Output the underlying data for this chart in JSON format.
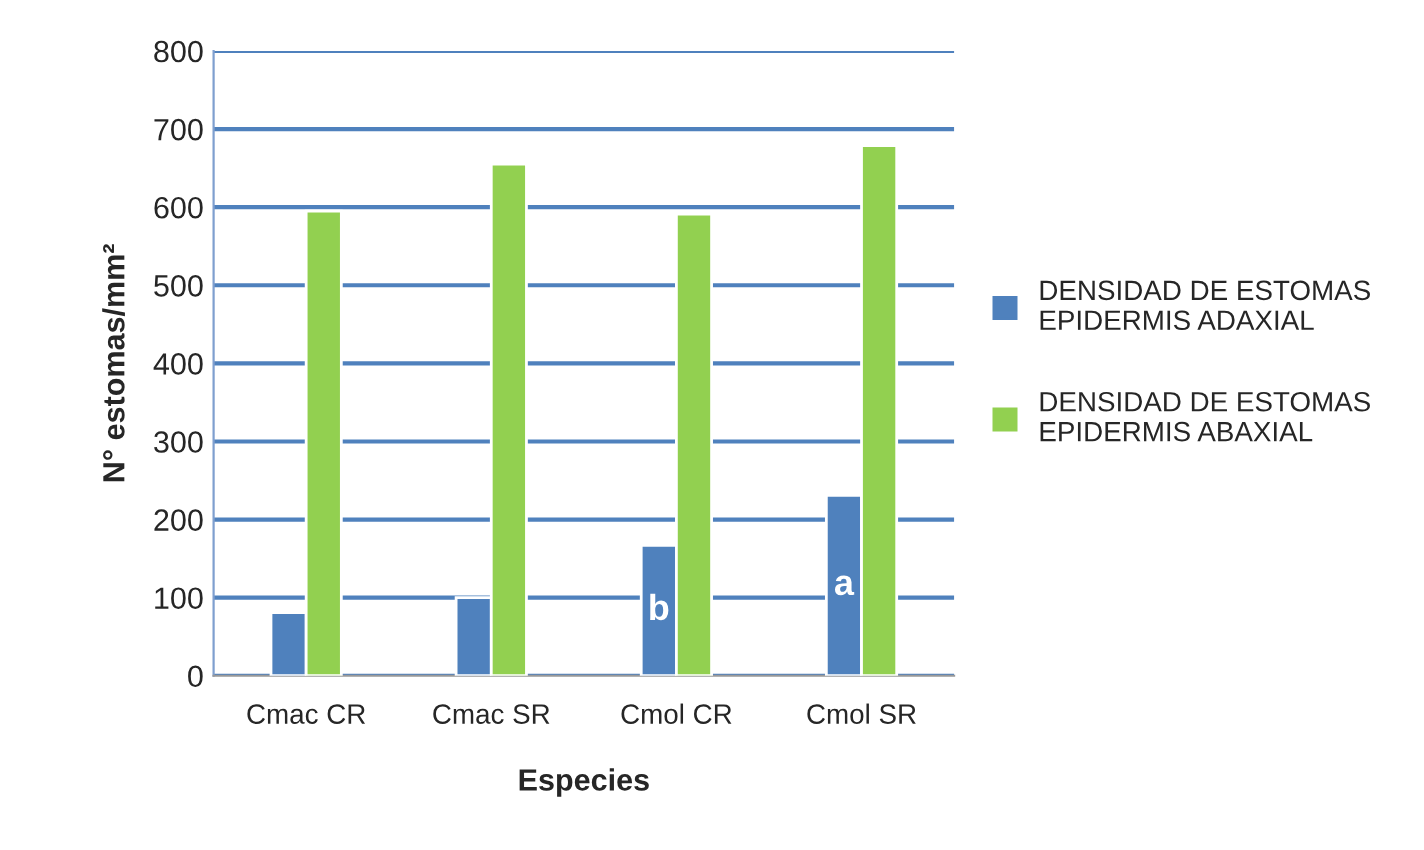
{
  "chart_data": {
    "type": "bar",
    "xlabel": "Especies",
    "ylabel": "N° estomas/mm²",
    "categories": [
      "Cmac CR",
      "Cmac SR",
      "Cmol CR",
      "Cmol SR"
    ],
    "series": [
      {
        "name": "DENSIDAD DE ESTOMAS\nEPIDERMIS ADAXIAL",
        "color": "#4f81bd",
        "values": [
          81,
          100,
          167,
          231
        ],
        "value_labels": [
          null,
          null,
          "b",
          "a"
        ]
      },
      {
        "name": "DENSIDAD DE ESTOMAS\nEPIDERMIS ABAXIAL",
        "color": "#92d050",
        "values": [
          595,
          655,
          591,
          679
        ]
      }
    ],
    "ylim": [
      0,
      800
    ],
    "yticks": [
      0,
      100,
      200,
      300,
      400,
      500,
      600,
      700,
      800
    ],
    "grid": "y",
    "legend": "right"
  }
}
